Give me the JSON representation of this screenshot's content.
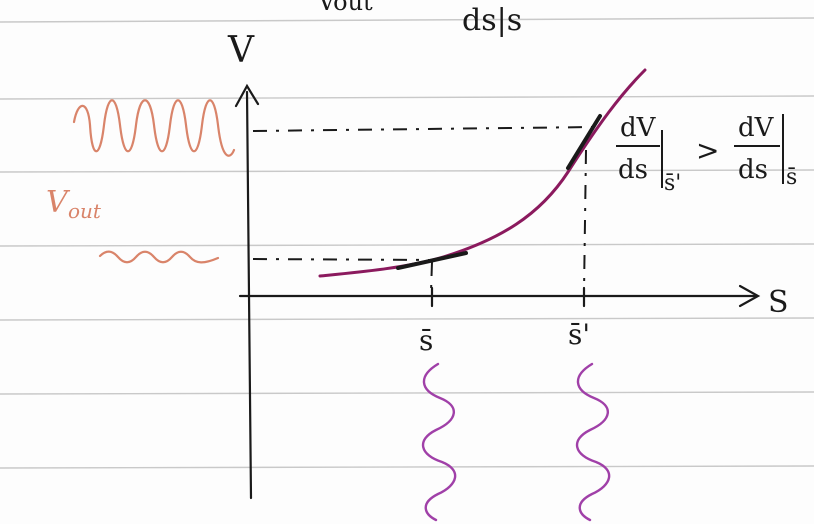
{
  "header_fragment": {
    "left": "Vout",
    "right": "ds|s"
  },
  "axes": {
    "y_label": "V",
    "x_label": "S"
  },
  "output_label": {
    "base": "V",
    "sub": "out"
  },
  "ticks": {
    "s_bar": "s̄",
    "s_prime": "s̄'"
  },
  "inequality": {
    "left": {
      "num": "dV",
      "den": "ds",
      "eval": "s̄'"
    },
    "op": ">",
    "right": {
      "num": "dV",
      "den": "ds",
      "eval": "s̄"
    }
  },
  "colors": {
    "ink": "#1a1a1a",
    "curve": "#8b1a5e",
    "output_wave": "#d9846a",
    "input_wave": "#a040a8",
    "ruled_line": "#c9c9c9"
  }
}
